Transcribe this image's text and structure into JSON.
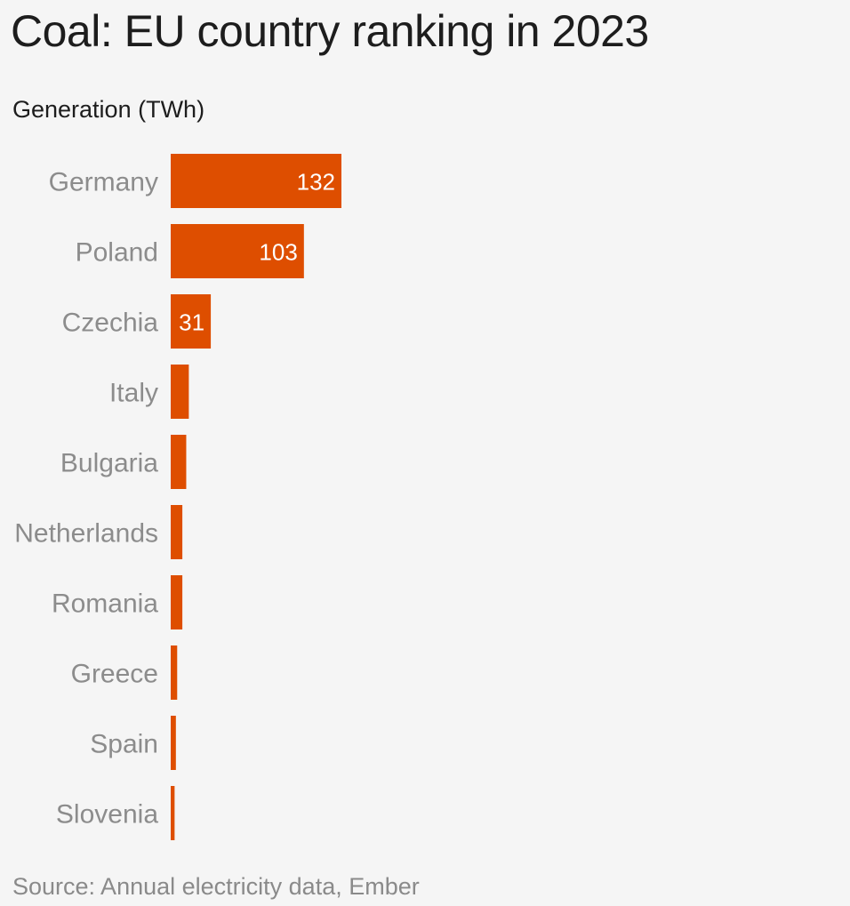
{
  "chart_data": {
    "type": "bar",
    "orientation": "horizontal",
    "title": "Coal: EU country ranking in 2023",
    "subtitle": "Generation (TWh)",
    "source": "Source: Annual electricity data, Ember",
    "categories": [
      "Germany",
      "Poland",
      "Czechia",
      "Italy",
      "Bulgaria",
      "Netherlands",
      "Romania",
      "Greece",
      "Spain",
      "Slovenia"
    ],
    "values": [
      132,
      103,
      31,
      14,
      12,
      9,
      9,
      5,
      4,
      3
    ],
    "value_labels": [
      "132",
      "103",
      "31",
      "",
      "",
      "",
      "",
      "",
      "",
      ""
    ],
    "xlabel": "",
    "ylabel": "Generation (TWh)",
    "xlim": [
      0,
      132
    ],
    "grid": false,
    "bar_color": "#de4e00"
  }
}
